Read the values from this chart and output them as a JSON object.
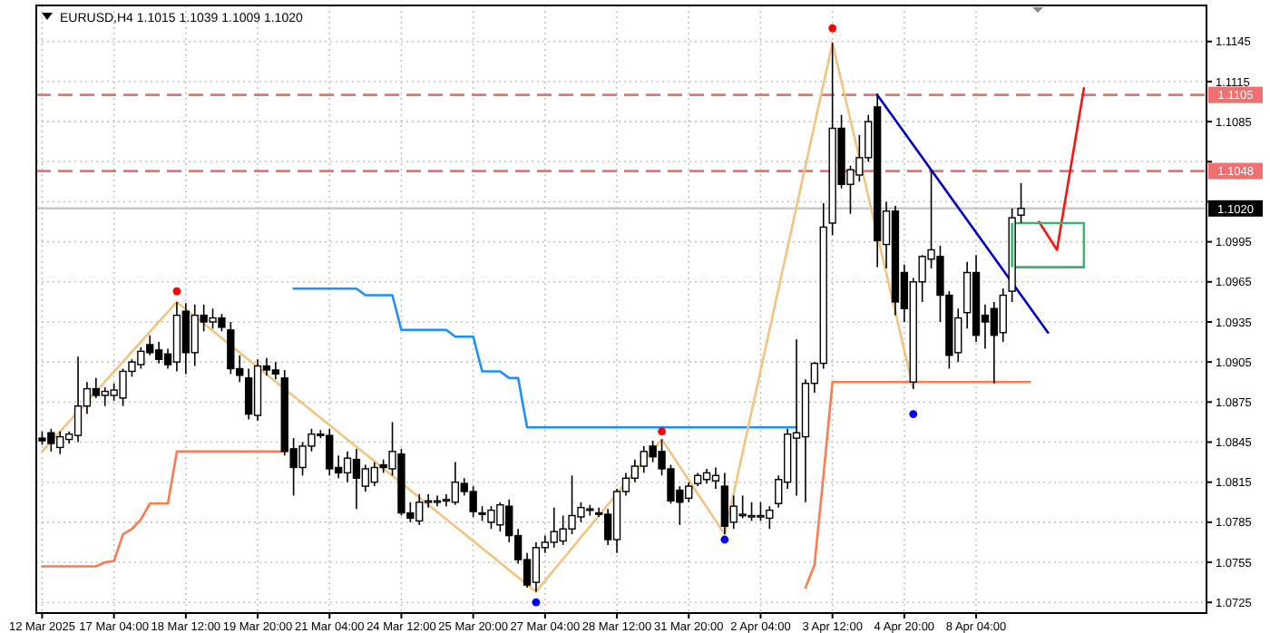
{
  "chart_data": {
    "type": "candlestick",
    "title": "EURUSD,H4  1.1015 1.1039 1.1009 1.1020",
    "categories": [
      "12 Mar 2025",
      null,
      null,
      null,
      null,
      null,
      null,
      null,
      "17 Mar 04:00",
      null,
      null,
      null,
      null,
      null,
      null,
      null,
      "18 Mar 12:00",
      null,
      null,
      null,
      null,
      null,
      null,
      null,
      "19 Mar 20:00",
      null,
      null,
      null,
      null,
      null,
      null,
      null,
      "21 Mar 04:00",
      null,
      null,
      null,
      null,
      null,
      null,
      null,
      "24 Mar 12:00",
      null,
      null,
      null,
      null,
      null,
      null,
      null,
      "25 Mar 20:00",
      null,
      null,
      null,
      null,
      null,
      null,
      null,
      "27 Mar 04:00",
      null,
      null,
      null,
      null,
      null,
      null,
      null,
      "28 Mar 12:00",
      null,
      null,
      null,
      null,
      null,
      null,
      null,
      "31 Mar 20:00",
      null,
      null,
      null,
      null,
      null,
      null,
      null,
      "2 Apr 04:00",
      null,
      null,
      null,
      null,
      null,
      null,
      null,
      "3 Apr 12:00",
      null,
      null,
      null,
      null,
      null,
      null,
      null,
      "4 Apr 20:00",
      null,
      null,
      null,
      null,
      null,
      null,
      null,
      "8 Apr 04:00",
      null,
      null,
      null,
      null,
      null,
      null,
      null,
      null,
      null,
      null,
      null,
      null,
      null,
      null,
      null,
      null,
      null,
      null,
      null,
      null,
      null,
      null,
      null,
      null,
      null
    ],
    "ohlc": [
      [
        1.0848,
        1.0853,
        1.0843,
        1.0846
      ],
      [
        1.0852,
        1.0855,
        1.0838,
        1.0844
      ],
      [
        1.0841,
        1.0853,
        1.0836,
        1.0849
      ],
      [
        1.0847,
        1.0853,
        1.0844,
        1.0851
      ],
      [
        1.085,
        1.0909,
        1.0845,
        1.0872
      ],
      [
        1.0872,
        1.089,
        1.0866,
        1.0885
      ],
      [
        1.0885,
        1.0893,
        1.0878,
        1.088
      ],
      [
        1.088,
        1.0886,
        1.0872,
        1.0883
      ],
      [
        1.088,
        1.0889,
        1.0876,
        1.0884
      ],
      [
        1.0878,
        1.09,
        1.0872,
        1.0898
      ],
      [
        1.0898,
        1.0907,
        1.0894,
        1.0905
      ],
      [
        1.0903,
        1.0916,
        1.09,
        1.0913
      ],
      [
        1.0918,
        1.0925,
        1.091,
        1.0912
      ],
      [
        1.0914,
        1.092,
        1.0904,
        1.0907
      ],
      [
        1.0911,
        1.0915,
        1.09,
        1.0903
      ],
      [
        1.0905,
        1.095,
        1.0898,
        1.094
      ],
      [
        1.0943,
        1.0949,
        1.0896,
        1.0912
      ],
      [
        1.0912,
        1.0948,
        1.0902,
        1.094
      ],
      [
        1.094,
        1.0948,
        1.0928,
        1.0935
      ],
      [
        1.0935,
        1.0945,
        1.093,
        1.0938
      ],
      [
        1.0938,
        1.0941,
        1.0928,
        1.0931
      ],
      [
        1.0929,
        1.0935,
        1.0896,
        1.09
      ],
      [
        1.09,
        1.091,
        1.089,
        1.0895
      ],
      [
        1.0893,
        1.09,
        1.0862,
        1.0866
      ],
      [
        1.0865,
        1.0907,
        1.0861,
        1.0902
      ],
      [
        1.0902,
        1.0908,
        1.0895,
        1.0899
      ],
      [
        1.0899,
        1.0905,
        1.0892,
        1.0896
      ],
      [
        1.0893,
        1.0899,
        1.0835,
        1.0838
      ],
      [
        1.084,
        1.0848,
        1.0805,
        1.0826
      ],
      [
        1.0826,
        1.0845,
        1.082,
        1.0842
      ],
      [
        1.0842,
        1.0855,
        1.0838,
        1.0851
      ],
      [
        1.0851,
        1.0854,
        1.0848,
        1.085
      ],
      [
        1.085,
        1.0855,
        1.082,
        1.0825
      ],
      [
        1.0826,
        1.0835,
        1.0818,
        1.0822
      ],
      [
        1.0822,
        1.0838,
        1.0815,
        1.0833
      ],
      [
        1.0832,
        1.084,
        1.0795,
        1.0818
      ],
      [
        1.0812,
        1.0828,
        1.0808,
        1.0825
      ],
      [
        1.0815,
        1.083,
        1.0812,
        1.0826
      ],
      [
        1.0828,
        1.0832,
        1.0822,
        1.0826
      ],
      [
        1.0825,
        1.086,
        1.082,
        1.0838
      ],
      [
        1.0836,
        1.084,
        1.079,
        1.0792
      ],
      [
        1.0792,
        1.08,
        1.0785,
        1.0788
      ],
      [
        1.0786,
        1.0806,
        1.0783,
        1.08
      ],
      [
        1.08,
        1.0806,
        1.0796,
        1.0801
      ],
      [
        1.08,
        1.0805,
        1.0797,
        1.0801
      ],
      [
        1.0801,
        1.0806,
        1.0797,
        1.0802
      ],
      [
        1.08,
        1.083,
        1.0798,
        1.0815
      ],
      [
        1.0814,
        1.0818,
        1.0805,
        1.0808
      ],
      [
        1.0808,
        1.0812,
        1.0789,
        1.0793
      ],
      [
        1.0792,
        1.0797,
        1.0786,
        1.0791
      ],
      [
        1.0785,
        1.0797,
        1.078,
        1.0794
      ],
      [
        1.0783,
        1.08,
        1.0778,
        1.0798
      ],
      [
        1.0797,
        1.0802,
        1.077,
        1.0775
      ],
      [
        1.0775,
        1.078,
        1.0754,
        1.0757
      ],
      [
        1.0757,
        1.0762,
        1.0736,
        1.0738
      ],
      [
        1.074,
        1.077,
        1.0733,
        1.0766
      ],
      [
        1.0766,
        1.0775,
        1.0762,
        1.077
      ],
      [
        1.077,
        1.0796,
        1.0766,
        1.0778
      ],
      [
        1.0771,
        1.079,
        1.0768,
        1.078
      ],
      [
        1.078,
        1.082,
        1.0776,
        1.079
      ],
      [
        1.0789,
        1.08,
        1.0785,
        1.0796
      ],
      [
        1.0794,
        1.0798,
        1.079,
        1.0795
      ],
      [
        1.0792,
        1.0796,
        1.0789,
        1.0791
      ],
      [
        1.0791,
        1.0795,
        1.0768,
        1.0772
      ],
      [
        1.0772,
        1.081,
        1.0762,
        1.0808
      ],
      [
        1.0808,
        1.0822,
        1.0805,
        1.0818
      ],
      [
        1.0818,
        1.0832,
        1.0815,
        1.0827
      ],
      [
        1.0827,
        1.0842,
        1.0822,
        1.0838
      ],
      [
        1.0842,
        1.0846,
        1.083,
        1.0834
      ],
      [
        1.0838,
        1.0847,
        1.082,
        1.0825
      ],
      [
        1.0825,
        1.0828,
        1.0799,
        1.0801
      ],
      [
        1.0809,
        1.0812,
        1.0783,
        1.08
      ],
      [
        1.0803,
        1.0815,
        1.08,
        1.0812
      ],
      [
        1.0814,
        1.0822,
        1.0812,
        1.082
      ],
      [
        1.0817,
        1.0825,
        1.0814,
        1.0822
      ],
      [
        1.0816,
        1.0826,
        1.081,
        1.082
      ],
      [
        1.0812,
        1.0822,
        1.0776,
        1.0782
      ],
      [
        1.0785,
        1.0805,
        1.078,
        1.0797
      ],
      [
        1.079,
        1.0805,
        1.0788,
        1.0791
      ],
      [
        1.0789,
        1.08,
        1.0786,
        1.079
      ],
      [
        1.0789,
        1.08,
        1.0786,
        1.079
      ],
      [
        1.0788,
        1.0797,
        1.078,
        1.0794
      ],
      [
        1.0799,
        1.082,
        1.0796,
        1.0817
      ],
      [
        1.0815,
        1.0855,
        1.081,
        1.0851
      ],
      [
        1.0848,
        1.0922,
        1.0805,
        1.0852
      ],
      [
        1.0849,
        1.0892,
        1.08,
        1.0889
      ],
      [
        1.0889,
        1.0905,
        1.0882,
        1.0904
      ],
      [
        1.0904,
        1.1024,
        1.09,
        1.1006
      ],
      [
        1.1009,
        1.1144,
        1.1,
        1.108
      ],
      [
        1.108,
        1.109,
        1.1035,
        1.1038
      ],
      [
        1.1038,
        1.1052,
        1.1016,
        1.1049
      ],
      [
        1.1045,
        1.1075,
        1.104,
        1.1058
      ],
      [
        1.1058,
        1.109,
        1.1055,
        1.1085
      ],
      [
        1.1096,
        1.1106,
        1.0976,
        1.0996
      ],
      [
        1.0993,
        1.1025,
        1.0975,
        1.1018
      ],
      [
        1.1018,
        1.1022,
        1.094,
        1.095
      ],
      [
        1.0972,
        1.0978,
        1.0935,
        1.0945
      ],
      [
        1.089,
        1.0968,
        1.0885,
        1.0965
      ],
      [
        1.0965,
        1.0985,
        1.095,
        1.0984
      ],
      [
        1.0982,
        1.1049,
        1.0975,
        1.0989
      ],
      [
        1.0984,
        1.0992,
        1.0935,
        1.0955
      ],
      [
        1.0955,
        1.0958,
        1.09,
        1.091
      ],
      [
        1.0912,
        1.0945,
        1.0905,
        1.0938
      ],
      [
        1.0942,
        1.098,
        1.093,
        1.0972
      ],
      [
        1.0972,
        1.0985,
        1.092,
        1.0925
      ],
      [
        1.094,
        1.0948,
        1.0915,
        1.0935
      ],
      [
        1.0945,
        1.095,
        1.0889,
        1.0925
      ],
      [
        1.0927,
        1.096,
        1.092,
        1.0955
      ],
      [
        1.0958,
        1.102,
        1.095,
        1.1013
      ],
      [
        1.1015,
        1.1039,
        1.1009,
        1.102
      ],
      null,
      null,
      null,
      null,
      null,
      null,
      null,
      null,
      null,
      null,
      null,
      null,
      null,
      null,
      null,
      null,
      null,
      null,
      null,
      null
    ],
    "ylim": [
      1.0717,
      1.1172
    ],
    "yticks": [
      1.0725,
      1.0755,
      1.0785,
      1.0815,
      1.0845,
      1.0875,
      1.0905,
      1.0935,
      1.0965,
      1.0995,
      {
        "value": 1.1025,
        "label": null
      },
      {
        "value": 1.1055,
        "label": null
      },
      1.1085,
      1.1115,
      1.1145
    ],
    "grid": true,
    "ref_lines": [
      {
        "axis": "y",
        "value": 1.1105,
        "label": "1.1105",
        "color": "#f07070",
        "line_style": "dashed"
      },
      {
        "axis": "y",
        "value": 1.1048,
        "label": "1.1048",
        "color": "#f07070",
        "line_style": "dashed"
      },
      {
        "axis": "y",
        "value": 1.102,
        "label": "1.1020",
        "color": "#c8c8c8",
        "line_style": "solid"
      }
    ],
    "series": [
      {
        "type": "line",
        "color": "#ff7a50",
        "values": [
          1.0752,
          1.0752,
          1.0752,
          1.0752,
          1.0752,
          1.0752,
          1.0752,
          1.0755,
          1.0756,
          1.0776,
          1.078,
          1.0787,
          1.0799,
          1.0799,
          1.0799,
          1.0838,
          1.0838,
          1.0838,
          1.0838,
          1.0838,
          1.0838,
          1.0838,
          1.0838,
          1.0838,
          1.0838,
          1.0838,
          1.0838,
          1.0838,
          null,
          null,
          null,
          null,
          null,
          null,
          null,
          null,
          null,
          null,
          null,
          null,
          null,
          null,
          null,
          null,
          null,
          null,
          null,
          null,
          null,
          null,
          null,
          null,
          null,
          null,
          null,
          null,
          null,
          null,
          null,
          null,
          null,
          null,
          null,
          null,
          null,
          null,
          null,
          null,
          null,
          null,
          null,
          null,
          null,
          null,
          null,
          null,
          null,
          null,
          null,
          null,
          null,
          null,
          null,
          null,
          null,
          null,
          null,
          null,
          null,
          null,
          null,
          null,
          null,
          null,
          null,
          null,
          null,
          null,
          null,
          null,
          null,
          null,
          null,
          null,
          null,
          null,
          null,
          null,
          null,
          null,
          null,
          null,
          null,
          null,
          null,
          null,
          null,
          null,
          null,
          null,
          null,
          null,
          null,
          null,
          null,
          null,
          null,
          null,
          null,
          null
        ]
      },
      {
        "type": "line",
        "color": "#ff7a50",
        "values": [
          null,
          null,
          null,
          null,
          null,
          null,
          null,
          null,
          null,
          null,
          null,
          null,
          null,
          null,
          null,
          null,
          null,
          null,
          null,
          null,
          null,
          null,
          null,
          null,
          null,
          null,
          null,
          null,
          null,
          null,
          null,
          null,
          null,
          null,
          null,
          null,
          null,
          null,
          null,
          null,
          null,
          null,
          null,
          null,
          null,
          null,
          null,
          null,
          null,
          null,
          null,
          null,
          null,
          null,
          null,
          null,
          null,
          null,
          null,
          null,
          null,
          null,
          null,
          null,
          null,
          null,
          null,
          null,
          null,
          null,
          null,
          null,
          null,
          null,
          null,
          null,
          null,
          null,
          null,
          null,
          null,
          null,
          null,
          null,
          null,
          1.0736,
          1.0753,
          1.082,
          1.089,
          1.089,
          1.089,
          1.089,
          1.089,
          1.089,
          1.089,
          1.089,
          1.089,
          1.089,
          1.089,
          1.089,
          1.089,
          1.089,
          1.089,
          1.089,
          1.089,
          1.089,
          1.089,
          1.089,
          1.089,
          1.089,
          1.089,
          null,
          null,
          null,
          null,
          null,
          null,
          null,
          null,
          null,
          null,
          null,
          null,
          null,
          null,
          null,
          null,
          null,
          null,
          null
        ]
      },
      {
        "type": "line",
        "color": "#1e8fff",
        "values": [
          null,
          null,
          null,
          null,
          null,
          null,
          null,
          null,
          null,
          null,
          null,
          null,
          null,
          null,
          null,
          null,
          null,
          null,
          null,
          null,
          null,
          null,
          null,
          null,
          null,
          null,
          null,
          null,
          1.096,
          1.096,
          1.096,
          1.096,
          1.096,
          1.096,
          1.096,
          1.096,
          1.0955,
          1.0955,
          1.0955,
          1.0955,
          1.0929,
          1.0929,
          1.0929,
          1.0929,
          1.0929,
          1.0929,
          1.0924,
          1.0924,
          1.0924,
          1.0898,
          1.0898,
          1.0898,
          1.0893,
          1.0893,
          1.0856,
          1.0856,
          1.0856,
          1.0856,
          1.0856,
          1.0856,
          1.0856,
          1.0856,
          1.0856,
          1.0856,
          1.0856,
          1.0856,
          1.0856,
          1.0856,
          1.0856,
          1.0856,
          1.0856,
          1.0856,
          1.0856,
          1.0856,
          1.0856,
          1.0856,
          1.0856,
          1.0856,
          1.0856,
          1.0856,
          1.0856,
          1.0856,
          1.0856,
          1.0856,
          1.0856,
          null,
          null,
          null,
          null,
          null,
          null,
          null,
          null,
          null,
          null,
          null,
          null,
          null,
          null,
          null,
          null,
          null,
          null,
          null,
          null,
          null,
          null,
          null,
          null,
          null,
          null,
          null,
          null,
          null,
          null,
          null,
          null,
          null,
          null,
          null,
          null,
          null,
          null,
          null,
          null,
          null,
          null,
          null,
          null,
          null
        ]
      },
      {
        "type": "line",
        "color": "#f2c47e",
        "values": [
          1.0838,
          null,
          null,
          null,
          null,
          null,
          null,
          null,
          null,
          null,
          null,
          null,
          null,
          null,
          null,
          1.095,
          null,
          null,
          null,
          null,
          null,
          null,
          null,
          null,
          null,
          null,
          null,
          null,
          null,
          null,
          null,
          null,
          null,
          null,
          null,
          null,
          null,
          null,
          null,
          null,
          null,
          null,
          null,
          null,
          null,
          null,
          null,
          null,
          null,
          null,
          null,
          null,
          null,
          null,
          null,
          1.0733,
          null,
          null,
          null,
          null,
          null,
          null,
          null,
          null,
          null,
          null,
          null,
          null,
          null,
          1.0847,
          null,
          null,
          null,
          null,
          null,
          null,
          1.0776,
          null,
          null,
          null,
          null,
          null,
          null,
          null,
          null,
          null,
          null,
          null,
          1.1144,
          null,
          null,
          null,
          null,
          null,
          null,
          null,
          null,
          1.0885,
          null,
          null,
          null,
          null,
          null,
          null,
          null,
          null,
          null,
          null,
          null,
          null,
          null,
          null,
          null,
          null,
          null,
          null,
          null,
          null,
          null,
          null,
          null,
          null,
          null,
          null,
          null,
          null,
          null,
          null,
          null,
          null
        ]
      },
      {
        "type": "line",
        "color": "#0000c8",
        "values": [
          null,
          null,
          null,
          null,
          null,
          null,
          null,
          null,
          null,
          null,
          null,
          null,
          null,
          null,
          null,
          null,
          null,
          null,
          null,
          null,
          null,
          null,
          null,
          null,
          null,
          null,
          null,
          null,
          null,
          null,
          null,
          null,
          null,
          null,
          null,
          null,
          null,
          null,
          null,
          null,
          null,
          null,
          null,
          null,
          null,
          null,
          null,
          null,
          null,
          null,
          null,
          null,
          null,
          null,
          null,
          null,
          null,
          null,
          null,
          null,
          null,
          null,
          null,
          null,
          null,
          null,
          null,
          null,
          null,
          null,
          null,
          null,
          null,
          null,
          null,
          null,
          null,
          null,
          null,
          null,
          null,
          null,
          null,
          null,
          null,
          null,
          null,
          null,
          null,
          null,
          null,
          null,
          null,
          1.1105,
          null,
          null,
          null,
          null,
          null,
          null,
          null,
          null,
          null,
          null,
          null,
          null,
          null,
          null,
          null,
          null,
          null,
          null,
          1.0927,
          null,
          null,
          null,
          null,
          null,
          null,
          null,
          null,
          null,
          null,
          null,
          null,
          null,
          null,
          null,
          null,
          null
        ]
      },
      {
        "type": "line",
        "color": "#ff1010",
        "values": [
          null,
          null,
          null,
          null,
          null,
          null,
          null,
          null,
          null,
          null,
          null,
          null,
          null,
          null,
          null,
          null,
          null,
          null,
          null,
          null,
          null,
          null,
          null,
          null,
          null,
          null,
          null,
          null,
          null,
          null,
          null,
          null,
          null,
          null,
          null,
          null,
          null,
          null,
          null,
          null,
          null,
          null,
          null,
          null,
          null,
          null,
          null,
          null,
          null,
          null,
          null,
          null,
          null,
          null,
          null,
          null,
          null,
          null,
          null,
          null,
          null,
          null,
          null,
          null,
          null,
          null,
          null,
          null,
          null,
          null,
          null,
          null,
          null,
          null,
          null,
          null,
          null,
          null,
          null,
          null,
          null,
          null,
          null,
          null,
          null,
          null,
          null,
          null,
          null,
          null,
          null,
          null,
          null,
          null,
          null,
          null,
          null,
          null,
          null,
          null,
          null,
          null,
          null,
          null,
          null,
          null,
          null,
          null,
          null,
          null,
          null,
          1.101,
          null,
          1.0989,
          null,
          null,
          1.111,
          null,
          null,
          null,
          null,
          null,
          null,
          null,
          null,
          null,
          null,
          null,
          null,
          null
        ]
      },
      {
        "type": "scatter",
        "color": "#ff0000",
        "values": [
          null,
          null,
          null,
          null,
          null,
          null,
          null,
          null,
          null,
          null,
          null,
          null,
          null,
          null,
          null,
          1.0958,
          null,
          null,
          null,
          null,
          null,
          null,
          null,
          null,
          null,
          null,
          null,
          null,
          null,
          null,
          null,
          null,
          null,
          null,
          null,
          null,
          null,
          null,
          null,
          null,
          null,
          null,
          null,
          null,
          null,
          null,
          null,
          null,
          null,
          null,
          null,
          null,
          null,
          null,
          null,
          null,
          null,
          null,
          null,
          null,
          null,
          null,
          null,
          null,
          null,
          null,
          null,
          null,
          null,
          1.0853,
          null,
          null,
          null,
          null,
          null,
          null,
          null,
          null,
          null,
          null,
          null,
          null,
          null,
          null,
          null,
          null,
          null,
          null,
          1.1155,
          null,
          null,
          null,
          null,
          null,
          null,
          null,
          null,
          null,
          null,
          null,
          null,
          null,
          null,
          null,
          null,
          null,
          null,
          null,
          null,
          null,
          null,
          null,
          null,
          null,
          null,
          null,
          null,
          null,
          null,
          null,
          null,
          null,
          null,
          null,
          null,
          null,
          null,
          null,
          null,
          null
        ]
      },
      {
        "type": "line",
        "color": "#3cb371",
        "values": [
          null,
          null,
          null,
          null,
          null,
          null,
          null,
          null,
          null,
          null,
          null,
          null,
          null,
          null,
          null,
          null,
          null,
          null,
          null,
          null,
          null,
          null,
          null,
          null,
          null,
          null,
          null,
          null,
          null,
          null,
          null,
          null,
          null,
          null,
          null,
          null,
          null,
          null,
          null,
          null,
          null,
          null,
          null,
          null,
          null,
          null,
          null,
          null,
          null,
          null,
          null,
          null,
          null,
          null,
          null,
          null,
          null,
          null,
          null,
          null,
          null,
          null,
          null,
          null,
          null,
          null,
          null,
          null,
          null,
          null,
          null,
          null,
          null,
          null,
          null,
          null,
          null,
          null,
          null,
          null,
          null,
          null,
          null,
          null,
          null,
          null,
          null,
          null,
          null,
          null,
          null,
          null,
          null,
          null,
          null,
          null,
          null,
          null,
          null,
          null,
          null,
          null,
          null,
          null,
          null,
          null,
          null,
          null,
          1.1009,
          1.1009,
          1.1009,
          1.1009,
          1.1009,
          1.1009,
          1.1009,
          1.1009,
          1.1009,
          null,
          null,
          null,
          null,
          null,
          null,
          null,
          null,
          null,
          null,
          null,
          null,
          null
        ]
      },
      {
        "type": "line",
        "color": "#3cb371",
        "values": [
          null,
          null,
          null,
          null,
          null,
          null,
          null,
          null,
          null,
          null,
          null,
          null,
          null,
          null,
          null,
          null,
          null,
          null,
          null,
          null,
          null,
          null,
          null,
          null,
          null,
          null,
          null,
          null,
          null,
          null,
          null,
          null,
          null,
          null,
          null,
          null,
          null,
          null,
          null,
          null,
          null,
          null,
          null,
          null,
          null,
          null,
          null,
          null,
          null,
          null,
          null,
          null,
          null,
          null,
          null,
          null,
          null,
          null,
          null,
          null,
          null,
          null,
          null,
          null,
          null,
          null,
          null,
          null,
          null,
          null,
          null,
          null,
          null,
          null,
          null,
          null,
          null,
          null,
          null,
          null,
          null,
          null,
          null,
          null,
          null,
          null,
          null,
          null,
          null,
          null,
          null,
          null,
          null,
          null,
          null,
          null,
          null,
          null,
          null,
          null,
          null,
          null,
          null,
          null,
          null,
          null,
          null,
          null,
          1.0976,
          1.0976,
          1.0976,
          1.0976,
          1.0976,
          1.0976,
          1.0976,
          1.0976,
          1.0976,
          null,
          null,
          null,
          null,
          null,
          null,
          null,
          null,
          null,
          null,
          null,
          null,
          null
        ]
      },
      {
        "type": "scatter",
        "color": "#0000ff",
        "values": [
          null,
          null,
          null,
          null,
          null,
          null,
          null,
          null,
          null,
          null,
          null,
          null,
          null,
          null,
          null,
          null,
          null,
          null,
          null,
          null,
          null,
          null,
          null,
          null,
          null,
          null,
          null,
          null,
          null,
          null,
          null,
          null,
          null,
          null,
          null,
          null,
          null,
          null,
          null,
          null,
          null,
          null,
          null,
          null,
          null,
          null,
          null,
          null,
          null,
          null,
          null,
          null,
          null,
          null,
          null,
          1.0725,
          null,
          null,
          null,
          null,
          null,
          null,
          null,
          null,
          null,
          null,
          null,
          null,
          null,
          null,
          null,
          null,
          null,
          null,
          null,
          null,
          1.0772,
          null,
          null,
          null,
          null,
          null,
          null,
          null,
          null,
          null,
          null,
          null,
          null,
          null,
          null,
          null,
          null,
          null,
          null,
          null,
          null,
          1.0866,
          null,
          null,
          null,
          null,
          null,
          null,
          null,
          null,
          null,
          null,
          null,
          null,
          null,
          null,
          null,
          null,
          null,
          null,
          null,
          null,
          null,
          null,
          null,
          null,
          null,
          null,
          null,
          null,
          null,
          null,
          null,
          null
        ]
      }
    ]
  }
}
